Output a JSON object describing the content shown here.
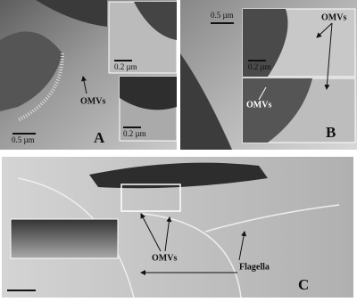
{
  "panels": [
    {
      "label": "A",
      "annotations": [
        "OMVs"
      ],
      "scale_bars": [
        "0.5 µm",
        "0.2 µm",
        "0.2 µm"
      ]
    },
    {
      "label": "B",
      "annotations": [
        "OMVs",
        "OMVs"
      ],
      "scale_bars": [
        "0.5 µm",
        "0.2 µm"
      ]
    },
    {
      "label": "C",
      "annotations": [
        "OMVs",
        "Flagella"
      ]
    }
  ]
}
